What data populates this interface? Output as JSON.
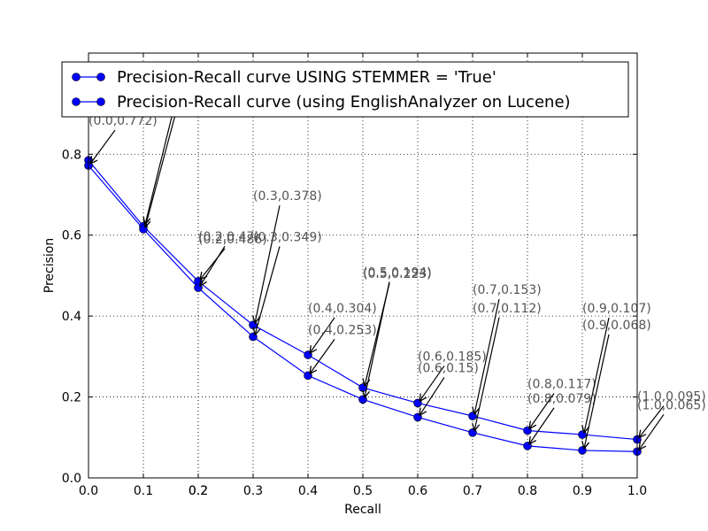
{
  "chart_data": {
    "type": "line",
    "title": "",
    "xlabel": "Recall",
    "ylabel": "Precision",
    "xlim": [
      0.0,
      1.0
    ],
    "ylim": [
      0.0,
      1.05
    ],
    "grid": true,
    "legend_position": "top",
    "x_ticks": [
      "0.0",
      "0.1",
      "0.2",
      "0.2",
      "0.3",
      "0.4",
      "0.5",
      "0.6",
      "0.7",
      "0.8",
      "0.9",
      "1.0"
    ],
    "x_tick_values": [
      0.0,
      0.1,
      0.2,
      0.2,
      0.3,
      0.4,
      0.5,
      0.6,
      0.7,
      0.8,
      0.9,
      1.0
    ],
    "y_ticks": [
      "0.0",
      "0.2",
      "0.4",
      "0.6",
      "0.8"
    ],
    "y_tick_values": [
      0.0,
      0.2,
      0.4,
      0.6,
      0.8
    ],
    "series": [
      {
        "name": "Precision-Recall curve USING STEMMER = 'True'",
        "color": "#0000ff",
        "x": [
          0.0,
          0.1,
          0.2,
          0.3,
          0.4,
          0.5,
          0.6,
          0.7,
          0.8,
          0.9,
          1.0
        ],
        "y": [
          0.785,
          0.622,
          0.486,
          0.378,
          0.304,
          0.223,
          0.185,
          0.153,
          0.117,
          0.107,
          0.095
        ],
        "labels": [
          "",
          "",
          "(0.2,0.486)",
          "(0.3,0.378)",
          "(0.4,0.304)",
          "(0.5,0.223)",
          "(0.6,0.185)",
          "(0.7,0.153)",
          "(0.8,0.117)",
          "(0.9,0.107)",
          "(1.0,0.095)"
        ]
      },
      {
        "name": "Precision-Recall curve (using EnglishAnalyzer on Lucene)",
        "color": "#0000ff",
        "x": [
          0.0,
          0.1,
          0.2,
          0.3,
          0.4,
          0.5,
          0.6,
          0.7,
          0.8,
          0.9,
          1.0
        ],
        "y": [
          0.772,
          0.615,
          0.47,
          0.349,
          0.253,
          0.194,
          0.15,
          0.112,
          0.079,
          0.068,
          0.065
        ],
        "labels": [
          "(0.0,0.772)",
          "",
          "(0.2,0.47)",
          "(0.3,0.349)",
          "(0.4,0.253)",
          "(0.5,0.194)",
          "(0.6,0.15)",
          "(0.7,0.112)",
          "(0.8,0.079)",
          "(0.9,0.068)",
          "(1.0,0.065)"
        ]
      }
    ]
  }
}
